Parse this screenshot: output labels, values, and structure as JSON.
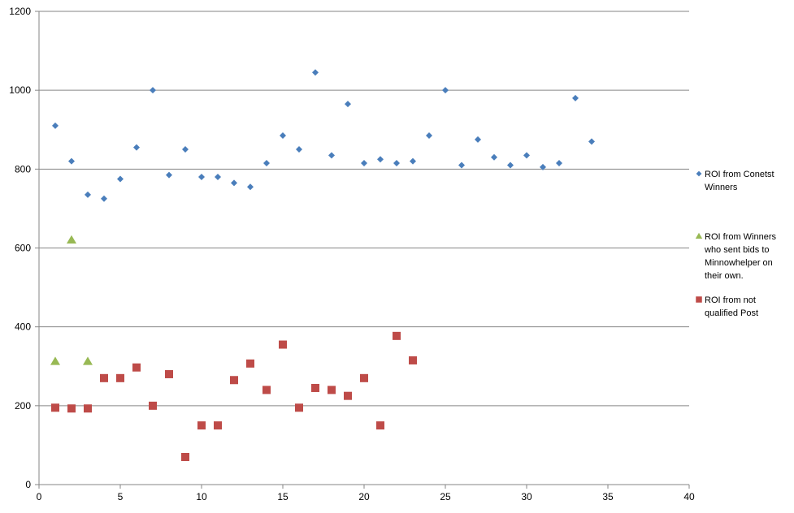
{
  "chart_data": {
    "type": "scatter",
    "xlim": [
      0,
      40
    ],
    "ylim": [
      0,
      1200
    ],
    "xticks": [
      0,
      5,
      10,
      15,
      20,
      25,
      30,
      35,
      40
    ],
    "yticks": [
      0,
      200,
      400,
      600,
      800,
      1000,
      1200
    ],
    "grid": "horizontal",
    "legend_position": "right",
    "series": [
      {
        "name": "ROI from Conetst Winners",
        "legend_lines": [
          "ROI from Conetst",
          "Winners"
        ],
        "marker": "diamond",
        "color": "#4a7ebb",
        "x": [
          1,
          2,
          3,
          4,
          5,
          6,
          7,
          8,
          9,
          10,
          11,
          12,
          13,
          14,
          15,
          16,
          17,
          18,
          19,
          20,
          21,
          22,
          23,
          24,
          25,
          26,
          27,
          28,
          29,
          30,
          31,
          32,
          33,
          34
        ],
        "y": [
          910,
          820,
          735,
          725,
          775,
          855,
          1000,
          785,
          850,
          780,
          780,
          765,
          755,
          815,
          885,
          850,
          1045,
          835,
          965,
          815,
          825,
          815,
          820,
          885,
          1000,
          810,
          875,
          830,
          810,
          835,
          805,
          815,
          980,
          870
        ]
      },
      {
        "name": "ROI from Winners who sent bids to Minnowhelper on their own.",
        "legend_lines": [
          "ROI from Winners",
          "who sent bids to",
          "Minnowhelper on",
          "their own."
        ],
        "marker": "triangle",
        "color": "#98b954",
        "x": [
          1,
          2,
          3
        ],
        "y": [
          312,
          620,
          312
        ]
      },
      {
        "name": "ROI from not qualified Post",
        "legend_lines": [
          "ROI from not",
          "qualified Post"
        ],
        "marker": "square",
        "color": "#be4b48",
        "x": [
          1,
          2,
          3,
          4,
          5,
          6,
          7,
          8,
          9,
          10,
          11,
          12,
          13,
          14,
          15,
          16,
          17,
          18,
          19,
          20,
          21,
          22,
          23
        ],
        "y": [
          195,
          193,
          193,
          270,
          270,
          297,
          200,
          280,
          70,
          150,
          150,
          265,
          307,
          240,
          355,
          195,
          245,
          240,
          225,
          270,
          150,
          377,
          315
        ]
      }
    ]
  }
}
